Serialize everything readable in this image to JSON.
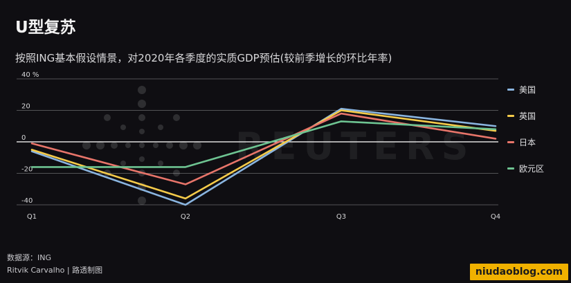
{
  "header": {
    "title": "U型复苏",
    "subtitle": "按照ING基本假设情景，对2020年各季度的实质GDP预估(较前季增长的环比年率)"
  },
  "chart_data": {
    "type": "line",
    "title": "U型复苏",
    "subtitle": "按照ING基本假设情景，对2020年各季度的实质GDP预估(较前季增长的环比年率)",
    "x": [
      "Q1",
      "Q2",
      "Q3",
      "Q4"
    ],
    "ylim": [
      -40,
      40
    ],
    "ytick_labels": [
      "40 %",
      "20",
      "0",
      "-20",
      "-40"
    ],
    "grid": true,
    "legend_position": "right",
    "series": [
      {
        "name": "美国",
        "values": [
          -6,
          -40,
          21,
          10
        ],
        "color": "#8ab5e0"
      },
      {
        "name": "英国",
        "values": [
          -5,
          -36,
          20,
          7
        ],
        "color": "#f5cb4a"
      },
      {
        "name": "日本",
        "values": [
          -1,
          -27,
          18,
          2
        ],
        "color": "#e8756a"
      },
      {
        "name": "欧元区",
        "values": [
          -16,
          -16,
          13,
          8
        ],
        "color": "#6ec492"
      }
    ]
  },
  "footer": {
    "source": "数据源：ING",
    "author": "Ritvik Carvalho | 路透制图"
  },
  "watermark": {
    "text": "niudaoblog.com"
  },
  "background_brand": "REUTERS",
  "colors": {
    "background": "#0f0e12",
    "grid": "#b6b6b8",
    "zero_line": "#f4f4f4"
  }
}
